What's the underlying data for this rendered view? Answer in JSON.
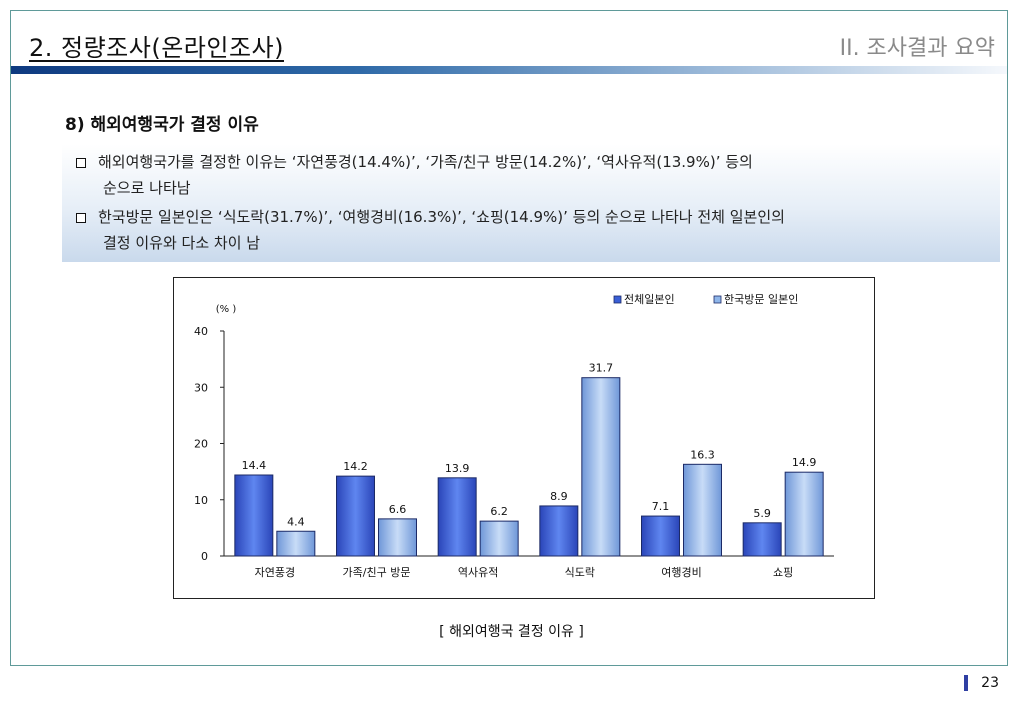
{
  "header": {
    "title": "2. 정량조사(온라인조사)",
    "section": "II. 조사결과 요약"
  },
  "section_heading": "8) 해외여행국가 결정 이유",
  "bullets": [
    {
      "line1": "해외여행국가를 결정한 이유는 ‘자연풍경(14.4%)’, ‘가족/친구 방문(14.2%)’, ‘역사유적(13.9%)’ 등의",
      "line2": "순으로 나타남"
    },
    {
      "line1": "한국방문 일본인은 ‘식도락(31.7%)’, ‘여행경비(16.3%)’, ‘쇼핑(14.9%)’ 등의 순으로 나타나 전체 일본인의",
      "line2": "결정 이유와 다소 차이 남"
    }
  ],
  "chart_data": {
    "type": "bar",
    "ylabel": "(% )",
    "ylim": [
      0,
      40
    ],
    "yticks": [
      0,
      10,
      20,
      30,
      40
    ],
    "categories": [
      "자연풍경",
      "가족/친구 방문",
      "역사유적",
      "식도락",
      "여행경비",
      "쇼핑"
    ],
    "series": [
      {
        "name": "전체일본인",
        "values": [
          14.4,
          14.2,
          13.9,
          8.9,
          7.1,
          5.9
        ],
        "color": "#3a5fd6"
      },
      {
        "name": "한국방문 일본인",
        "values": [
          4.4,
          6.6,
          6.2,
          31.7,
          16.3,
          14.9
        ],
        "color": "#8fb6ea"
      }
    ],
    "legend": "top-right",
    "grid": false
  },
  "caption": "[ 해외여행국 결정 이유 ]",
  "page_number": "23"
}
